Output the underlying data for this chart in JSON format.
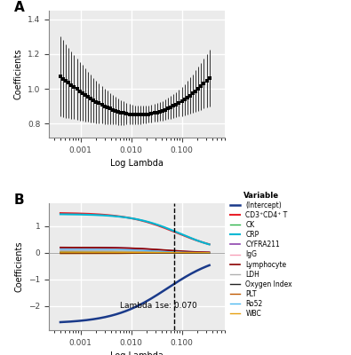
{
  "panel_a": {
    "xlabel": "Log Lambda",
    "ylabel": "Coefficients",
    "ylim": [
      0.72,
      1.45
    ],
    "yticks": [
      0.8,
      1.0,
      1.2,
      1.4
    ],
    "lambda_min": 0.0004,
    "lambda_max": 0.35,
    "n_points": 55,
    "bg_color": "#ebebeb"
  },
  "panel_b": {
    "xlabel": "Log Lambda",
    "ylabel": "Coefficients",
    "ylim": [
      -2.9,
      1.85
    ],
    "yticks": [
      -2,
      -1,
      0,
      1
    ],
    "lambda_vline": 0.07,
    "lambda_min": 0.0004,
    "lambda_max": 0.35,
    "annotation": "Lambda 1se: 0.070",
    "bg_color": "#ebebeb",
    "variables": [
      "(Intercept)",
      "CD3⁺CD4⁺ T",
      "CK",
      "CRP",
      "CYFRA211",
      "IgG",
      "Lymphocyte",
      "LDH",
      "Oxygen Index",
      "PLT",
      "Ro52",
      "WBC"
    ],
    "colors": [
      "#1a3a8a",
      "#e8212a",
      "#2db34a",
      "#00b8d4",
      "#8e44ad",
      "#f8a0b8",
      "#8b0000",
      "#b0b0b0",
      "#222222",
      "#c05800",
      "#4db8f0",
      "#e6a010"
    ]
  }
}
